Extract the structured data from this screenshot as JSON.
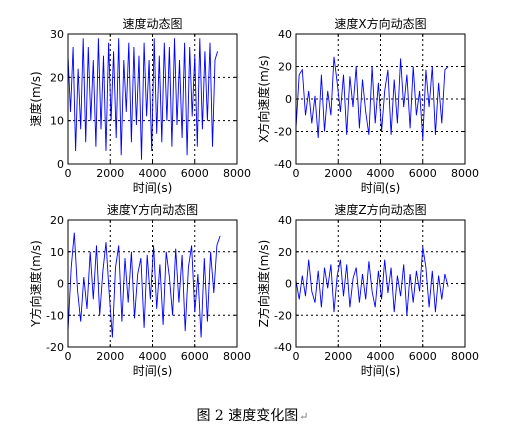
{
  "figure_caption": "图 2  速度变化图",
  "caption_mark": "↵",
  "chart_data": [
    {
      "type": "line",
      "title": "速度动态图",
      "xlabel": "时间(s)",
      "ylabel": "速度(m/s)",
      "xlim": [
        0,
        8000
      ],
      "ylim": [
        0,
        30
      ],
      "xticks": [
        0,
        2000,
        4000,
        6000,
        8000
      ],
      "yticks": [
        0,
        10,
        20,
        30
      ],
      "grid": true,
      "color": "#0000ff",
      "series": [
        {
          "x": [
            0,
            120,
            240,
            360,
            480,
            600,
            720,
            840,
            960,
            1080,
            1200,
            1320,
            1440,
            1560,
            1680,
            1800,
            1920,
            2040,
            2160,
            2280,
            2400,
            2520,
            2640,
            2760,
            2880,
            3000,
            3120,
            3240,
            3360,
            3480,
            3600,
            3720,
            3840,
            3960,
            4080,
            4200,
            4320,
            4440,
            4560,
            4680,
            4800,
            4920,
            5040,
            5160,
            5280,
            5400,
            5520,
            5640,
            5760,
            5880,
            6000,
            6120,
            6240,
            6360,
            6480,
            6600,
            6720,
            6840,
            6960,
            7080
          ],
          "y": [
            25,
            12,
            27,
            3,
            22,
            8,
            29,
            5,
            27,
            10,
            24,
            4,
            29,
            8,
            25,
            3,
            28,
            10,
            26,
            6,
            29,
            2,
            24,
            12,
            28,
            5,
            27,
            9,
            25,
            1,
            28,
            11,
            24,
            3,
            29,
            7,
            25,
            5,
            28,
            10,
            27,
            4,
            29,
            9,
            24,
            6,
            28,
            2,
            27,
            11,
            25,
            4,
            29,
            8,
            26,
            10,
            28,
            4,
            24,
            26
          ]
        }
      ]
    },
    {
      "type": "line",
      "title": "速度X方向动态图",
      "xlabel": "时间(s)",
      "ylabel": "X方向速度(m/s)",
      "xlim": [
        0,
        8000
      ],
      "ylim": [
        -40,
        40
      ],
      "xticks": [
        0,
        2000,
        4000,
        6000,
        8000
      ],
      "yticks": [
        -40,
        -20,
        0,
        20,
        40
      ],
      "grid": true,
      "color": "#0000ff",
      "series": [
        {
          "x": [
            0,
            150,
            300,
            450,
            600,
            750,
            900,
            1050,
            1200,
            1350,
            1500,
            1650,
            1800,
            1950,
            2100,
            2250,
            2400,
            2550,
            2700,
            2850,
            3000,
            3150,
            3300,
            3450,
            3600,
            3750,
            3900,
            4050,
            4200,
            4350,
            4500,
            4650,
            4800,
            4950,
            5100,
            5250,
            5400,
            5550,
            5700,
            5850,
            6000,
            6150,
            6300,
            6450,
            6600,
            6750,
            6900,
            7050,
            7200
          ],
          "y": [
            -18,
            15,
            18,
            -10,
            5,
            -15,
            2,
            -24,
            15,
            -20,
            5,
            -10,
            26,
            10,
            -8,
            15,
            -22,
            14,
            -5,
            20,
            -18,
            12,
            -8,
            -22,
            20,
            -15,
            10,
            -20,
            5,
            18,
            -22,
            12,
            -15,
            25,
            -5,
            15,
            -18,
            20,
            -10,
            5,
            -25,
            18,
            -5,
            20,
            -22,
            10,
            -15,
            18,
            20
          ]
        }
      ]
    },
    {
      "type": "line",
      "title": "速度Y方向动态图",
      "xlabel": "时间(s)",
      "ylabel": "Y方向速度(m/s)",
      "xlim": [
        0,
        8000
      ],
      "ylim": [
        -20,
        20
      ],
      "xticks": [
        0,
        2000,
        4000,
        6000,
        8000
      ],
      "yticks": [
        -20,
        -10,
        0,
        10,
        20
      ],
      "grid": true,
      "color": "#0000ff",
      "series": [
        {
          "x": [
            0,
            150,
            300,
            450,
            600,
            750,
            900,
            1050,
            1200,
            1350,
            1500,
            1650,
            1800,
            1950,
            2100,
            2250,
            2400,
            2550,
            2700,
            2850,
            3000,
            3150,
            3300,
            3450,
            3600,
            3750,
            3900,
            4050,
            4200,
            4350,
            4500,
            4650,
            4800,
            4950,
            5100,
            5250,
            5400,
            5550,
            5700,
            5850,
            6000,
            6150,
            6300,
            6450,
            6600,
            6750,
            6900,
            7050,
            7200
          ],
          "y": [
            -15,
            5,
            16,
            -2,
            -12,
            2,
            -8,
            10,
            -5,
            12,
            -10,
            4,
            13,
            -3,
            -17,
            5,
            12,
            -12,
            8,
            -6,
            10,
            -11,
            3,
            8,
            -14,
            9,
            -5,
            12,
            -8,
            6,
            -13,
            10,
            2,
            -10,
            11,
            -6,
            9,
            -15,
            5,
            12,
            -9,
            3,
            -17,
            8,
            -12,
            10,
            -3,
            12,
            15
          ]
        }
      ]
    },
    {
      "type": "line",
      "title": "速度Z方向动态图",
      "xlabel": "时间(s)",
      "ylabel": "Z方向速度(m/s)",
      "xlim": [
        0,
        8000
      ],
      "ylim": [
        -40,
        40
      ],
      "xticks": [
        0,
        2000,
        4000,
        6000,
        8000
      ],
      "yticks": [
        -40,
        -20,
        0,
        20,
        40
      ],
      "grid": true,
      "color": "#0000ff",
      "series": [
        {
          "x": [
            0,
            150,
            300,
            450,
            600,
            750,
            900,
            1050,
            1200,
            1350,
            1500,
            1650,
            1800,
            1950,
            2100,
            2250,
            2400,
            2550,
            2700,
            2850,
            3000,
            3150,
            3300,
            3450,
            3600,
            3750,
            3900,
            4050,
            4200,
            4350,
            4500,
            4650,
            4800,
            4950,
            5100,
            5250,
            5400,
            5550,
            5700,
            5850,
            6000,
            6150,
            6300,
            6450,
            6600,
            6750,
            6900,
            7050,
            7200
          ],
          "y": [
            2,
            -10,
            5,
            -8,
            15,
            -5,
            -12,
            8,
            -15,
            10,
            -3,
            12,
            -18,
            5,
            15,
            -8,
            12,
            -15,
            3,
            10,
            -12,
            6,
            -10,
            14,
            -5,
            -15,
            8,
            -10,
            15,
            -6,
            10,
            -18,
            5,
            -8,
            12,
            -20,
            6,
            -12,
            8,
            -5,
            23,
            10,
            -15,
            8,
            -18,
            5,
            -10,
            6,
            -2
          ]
        }
      ]
    }
  ]
}
